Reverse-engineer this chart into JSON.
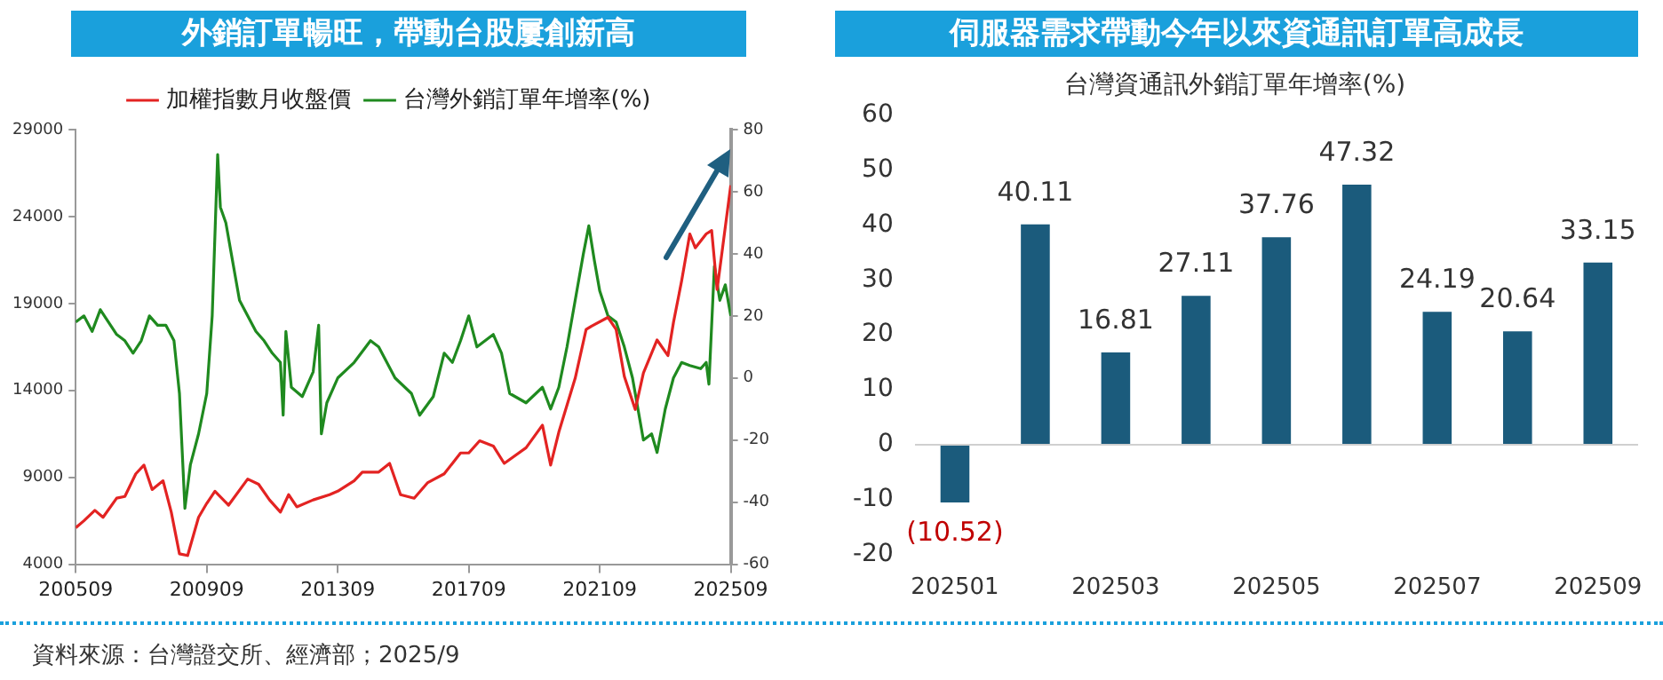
{
  "chart_data": [
    {
      "type": "line",
      "title": "外銷訂單暢旺，帶動台股屢創新高",
      "legend": "top",
      "marker": "none",
      "xlim": [
        "2005-09",
        "2025-09"
      ],
      "xticks": [
        {
          "value": "2005-09",
          "label": "200509"
        },
        {
          "value": "2009-09",
          "label": "200909"
        },
        {
          "value": "2013-09",
          "label": "201309"
        },
        {
          "value": "2017-09",
          "label": "201709"
        },
        {
          "value": "2021-09",
          "label": "202109"
        },
        {
          "value": "2025-09",
          "label": "202509"
        }
      ],
      "ylim": [
        4000,
        29000
      ],
      "yticks": [
        4000,
        9000,
        14000,
        19000,
        24000,
        29000
      ],
      "y2lim": [
        -60,
        80
      ],
      "y2ticks": [
        -60,
        -40,
        -20,
        0,
        20,
        40,
        60,
        80
      ],
      "series": [
        {
          "name": "加權指數月收盤價",
          "color": "#e32322",
          "x": [
            "2005-09",
            "2005-12",
            "2006-04",
            "2006-07",
            "2006-12",
            "2007-03",
            "2007-07",
            "2007-10",
            "2008-01",
            "2008-05",
            "2008-08",
            "2008-11",
            "2009-02",
            "2009-06",
            "2009-09",
            "2009-12",
            "2010-05",
            "2010-12",
            "2011-04",
            "2011-08",
            "2011-12",
            "2012-03",
            "2012-06",
            "2012-12",
            "2013-06",
            "2013-09",
            "2014-03",
            "2014-06",
            "2014-12",
            "2015-04",
            "2015-08",
            "2016-01",
            "2016-06",
            "2016-12",
            "2017-06",
            "2017-09",
            "2018-01",
            "2018-06",
            "2018-10",
            "2019-06",
            "2019-12",
            "2020-03",
            "2020-06",
            "2020-12",
            "2021-04",
            "2021-06",
            "2021-12",
            "2022-03",
            "2022-06",
            "2022-10",
            "2023-01",
            "2023-06",
            "2023-10",
            "2023-12",
            "2024-03",
            "2024-06",
            "2024-08",
            "2024-12",
            "2025-02",
            "2025-04",
            "2025-06",
            "2025-09"
          ],
          "values": [
            6100,
            6500,
            7100,
            6700,
            7800,
            7900,
            9200,
            9700,
            8300,
            8800,
            7000,
            4600,
            4500,
            6700,
            7500,
            8200,
            7400,
            8900,
            8600,
            7700,
            7000,
            8000,
            7300,
            7700,
            8000,
            8200,
            8800,
            9300,
            9300,
            9800,
            8000,
            7800,
            8700,
            9200,
            10400,
            10400,
            11100,
            10800,
            9800,
            10700,
            12000,
            9700,
            11600,
            14700,
            17500,
            17700,
            18200,
            17500,
            14800,
            12900,
            15000,
            16900,
            16000,
            17900,
            20300,
            23000,
            22200,
            23000,
            23200,
            19800,
            22200,
            25800
          ]
        },
        {
          "name": "台灣外銷訂單年增率(%)",
          "color": "#1f8a1f",
          "axis": "y2",
          "x": [
            "2005-09",
            "2005-12",
            "2006-03",
            "2006-06",
            "2006-09",
            "2006-12",
            "2007-03",
            "2007-06",
            "2007-09",
            "2007-12",
            "2008-03",
            "2008-06",
            "2008-09",
            "2008-11",
            "2009-01",
            "2009-03",
            "2009-06",
            "2009-09",
            "2009-11",
            "2010-01",
            "2010-02",
            "2010-04",
            "2010-06",
            "2010-09",
            "2010-12",
            "2011-03",
            "2011-06",
            "2011-09",
            "2011-12",
            "2012-01",
            "2012-02",
            "2012-04",
            "2012-08",
            "2012-12",
            "2013-02",
            "2013-03",
            "2013-05",
            "2013-09",
            "2014-03",
            "2014-09",
            "2014-12",
            "2015-06",
            "2015-12",
            "2016-03",
            "2016-08",
            "2016-12",
            "2017-03",
            "2017-06",
            "2017-09",
            "2017-12",
            "2018-06",
            "2018-09",
            "2018-12",
            "2019-06",
            "2019-12",
            "2020-03",
            "2020-06",
            "2020-09",
            "2020-12",
            "2021-03",
            "2021-05",
            "2021-07",
            "2021-09",
            "2021-12",
            "2022-03",
            "2022-06",
            "2022-09",
            "2022-11",
            "2023-01",
            "2023-04",
            "2023-06",
            "2023-09",
            "2023-12",
            "2024-03",
            "2024-06",
            "2024-10",
            "2024-12",
            "2025-01",
            "2025-03",
            "2025-05",
            "2025-07",
            "2025-09"
          ],
          "values": [
            18,
            20,
            15,
            22,
            18,
            14,
            12,
            8,
            12,
            20,
            17,
            17,
            12,
            -5,
            -42,
            -28,
            -18,
            -5,
            20,
            72,
            55,
            50,
            40,
            25,
            20,
            15,
            12,
            8,
            5,
            -12,
            15,
            -3,
            -6,
            2,
            17,
            -18,
            -8,
            0,
            5,
            12,
            10,
            0,
            -5,
            -12,
            -6,
            8,
            5,
            12,
            20,
            10,
            14,
            8,
            -5,
            -8,
            -3,
            -10,
            -3,
            10,
            25,
            40,
            49,
            38,
            28,
            20,
            18,
            10,
            0,
            -10,
            -20,
            -18,
            -24,
            -10,
            0,
            5,
            4,
            3,
            5,
            -2,
            36,
            25,
            30,
            20
          ]
        }
      ]
    },
    {
      "type": "bar",
      "title": "伺服器需求帶動今年以來資通訊訂單高成長",
      "subtitle": "台灣資通訊外銷訂單年增率(%)",
      "categories": [
        "202501",
        null,
        "202503",
        null,
        "202505",
        null,
        "202507",
        null,
        "202509"
      ],
      "values": [
        -10.52,
        40.11,
        16.81,
        27.11,
        37.76,
        47.32,
        24.19,
        20.64,
        33.15
      ],
      "value_labels": [
        "(10.52)",
        "40.11",
        "16.81",
        "27.11",
        "37.76",
        "47.32",
        "24.19",
        "20.64",
        "33.15"
      ],
      "color": "#1b5b7c",
      "ylim": [
        -20,
        60
      ],
      "yticks": [
        -20,
        -10,
        0,
        10,
        20,
        30,
        40,
        50,
        60
      ],
      "annotations": [
        "資料來源：台灣證交所、經濟部；2025/9"
      ]
    }
  ]
}
